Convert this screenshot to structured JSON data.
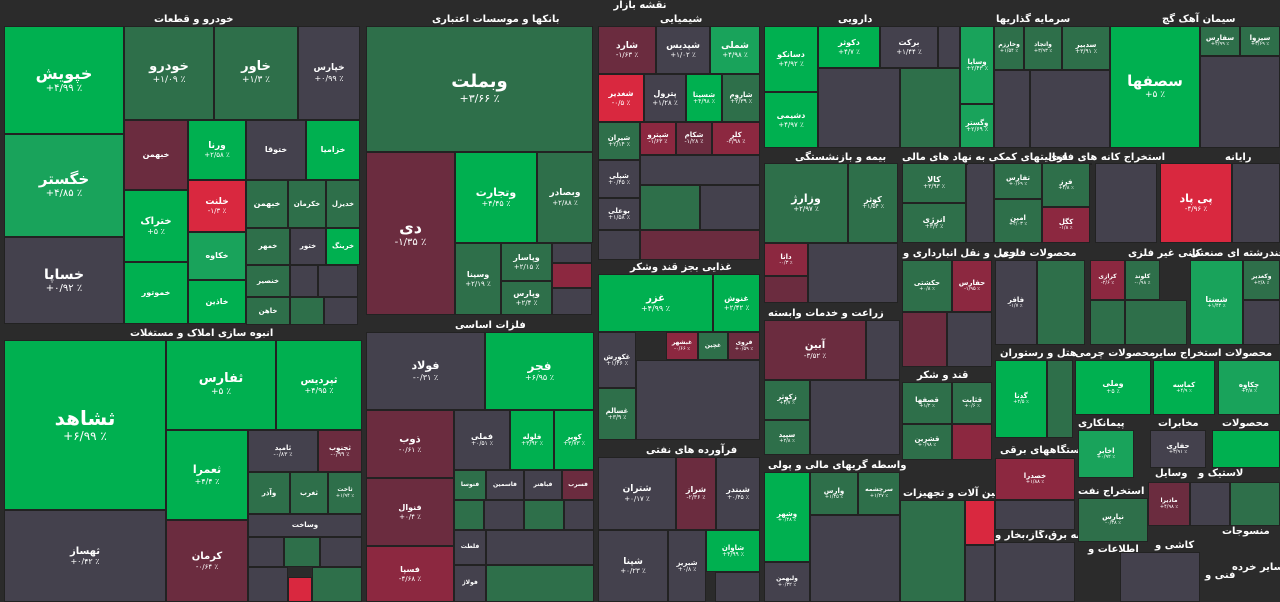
{
  "page_title": "نقشه بازار",
  "groups": {
    "auto": "خودرو و قطعات",
    "banks": "بانکها و موسسات اعتباری",
    "chem": "شیمیایی",
    "pharma": "دارویی",
    "invest": "سرمایه گذاریها",
    "cement": "سیمان آهک گچ",
    "construction": "انبوه سازی املاک و مستغلات",
    "metals": "فلزات اساسی",
    "food": "غذایی بجز قند وشکر",
    "insurance": "بیمه و بازنشستگی",
    "financial": "فعالیتهای کمکی به نهاد های مالی",
    "coal": "استخراج کانه های فلزی",
    "it": "رایانه",
    "agri": "زراعت و خدمات وابسته",
    "transport": "حمل و نقل انبارداری و",
    "metalprod": "محصولات فلزی",
    "nonmetal": "کانی غیر فلزی",
    "multi": "چندرشته ای صنعتی",
    "sugar": "قند و شکر",
    "hotel": "هتل و رستوران",
    "wood": "محصولات چرمی",
    "mining": "استخراج سایر",
    "products": "محصولات",
    "oil": "فرآورده های نفتی",
    "brokers": "واسطه گریهای مالی و پولی",
    "machinery": "ماشین آلات و تجهیزات",
    "electric": "دستگاههای برقی",
    "contract": "پیمانکاری",
    "telecom": "مخابرات",
    "oilex": "استخراج نفت",
    "rubber": "لاستیک و",
    "tools": "وسایل",
    "products2": "محصولات",
    "textile": "منسوجات",
    "other": "سایر خرده",
    "info": "اطلاعات و",
    "paper": "کاشی و",
    "tech": "فنی و",
    "utilities": "عرضه برق،گاز،بخار و"
  },
  "tiles": [
    {
      "n": "خپویش",
      "p": "٪ ۴/۹۹+"
    },
    {
      "n": "خگستر",
      "p": "٪ ۴/۸۵+"
    },
    {
      "n": "خساپا",
      "p": "٪ ۰/۹۲+"
    },
    {
      "n": "خودرو",
      "p": "٪ ۱/۰۹+"
    },
    {
      "n": "خاور",
      "p": "٪ ۱/۳+"
    },
    {
      "n": "خپارس",
      "p": "٪ ۰/۹۹+"
    },
    {
      "n": "ختراک",
      "p": "٪ ۵+"
    },
    {
      "n": "ورنا",
      "p": "٪ ۲/۵۸+"
    },
    {
      "n": "خلنت",
      "p": "٪ ۱/۳-"
    },
    {
      "n": "وبملت",
      "p": "٪ ۳/۶۶+"
    },
    {
      "n": "دی",
      "p": "٪ ۱/۳۵-"
    },
    {
      "n": "وتجارت",
      "p": "٪ ۴/۴۵+"
    },
    {
      "n": "وبصادر",
      "p": "٪ ۲/۸۸+"
    },
    {
      "n": "وسینا",
      "p": "٪ ۲/۱۹+"
    },
    {
      "n": "وپاسار",
      "p": "٪ ۲/۱۵+"
    },
    {
      "n": "وپارس",
      "p": "٪ ۲/۴+"
    },
    {
      "n": "شارد",
      "p": "٪ ۱/۶۳-"
    },
    {
      "n": "شپدیس",
      "p": "٪ ۱/۰۲+"
    },
    {
      "n": "شملی",
      "p": "٪ ۴/۹۸+"
    },
    {
      "n": "شغدیر",
      "p": "٪ ۰/۵-"
    },
    {
      "n": "پترول",
      "p": "٪ ۱/۲۸+"
    },
    {
      "n": "شسینا",
      "p": "٪ ۴/۹۸+"
    },
    {
      "n": "شاروم",
      "p": "٪ ۲/۳۹+"
    },
    {
      "n": "شیران",
      "p": "٪ ۲/۱۴+"
    },
    {
      "n": "شپترو",
      "p": "٪ ۱/۶۳-"
    },
    {
      "n": "شکام",
      "p": "٪ ۱/۲۸-"
    },
    {
      "n": "کلر",
      "p": "٪ ۳/۹۸-"
    },
    {
      "n": "شپلی",
      "p": "٪ ۰/۴۵+"
    },
    {
      "n": "بوعلی",
      "p": "٪ ۱/۵۸+"
    },
    {
      "n": "دسانکو",
      "p": "٪ ۴/۹۲+"
    },
    {
      "n": "دکوثر",
      "p": "٪ ۴/۷+"
    },
    {
      "n": "برکت",
      "p": "٪ ۱/۴۴+"
    },
    {
      "n": "دشیمی",
      "p": "٪ ۴/۹۷+"
    },
    {
      "n": "وسایا",
      "p": "٪ ۲/۴۳+"
    },
    {
      "n": "وخارزم",
      "p": "٪ ۱/۵۴+"
    },
    {
      "n": "واتجاد",
      "p": "٪ ۳/۹۳+"
    },
    {
      "n": "سدبیر",
      "p": "٪ ۳/۹۱+"
    },
    {
      "n": "وگستر",
      "p": "٪ ۲/۶۹+"
    },
    {
      "n": "سفارس",
      "p": "٪ ۲/۹۹+"
    },
    {
      "n": "سیزوا",
      "p": "٪ ۳/۶۹+"
    },
    {
      "n": "سصفها",
      "p": "٪ ۵+"
    },
    {
      "n": "ثشاهد",
      "p": "٪ ۶/۹۹+"
    },
    {
      "n": "ثفارس",
      "p": "٪ ۵+"
    },
    {
      "n": "ثپردیس",
      "p": "٪ ۴/۹۵+"
    },
    {
      "n": "ثعمرا",
      "p": "٪ ۴/۴+"
    },
    {
      "n": "ثامید",
      "p": "٪ ۰/۸۳-"
    },
    {
      "n": "ثجنوب",
      "p": "٪ ۰/۹۹-"
    },
    {
      "n": "ثاخت",
      "p": "٪ ۱/۹۴+"
    },
    {
      "n": "ثهساز",
      "p": "٪ ۰/۴۲+"
    },
    {
      "n": "کرمان",
      "p": "٪ ۰/۶۴-"
    },
    {
      "n": "فولاد",
      "p": "٪ ۰/۳۱-"
    },
    {
      "n": "فجر",
      "p": "٪ ۶/۹۵+"
    },
    {
      "n": "ذوب",
      "p": "٪ ۰/۶۱-"
    },
    {
      "n": "فملی",
      "p": "٪ ۰/۵۱+"
    },
    {
      "n": "فلوله",
      "p": "٪ ۳/۹۲+"
    },
    {
      "n": "کویر",
      "p": "٪ ۳/۷۳+"
    },
    {
      "n": "فنوال",
      "p": "٪ ۰/۴+"
    },
    {
      "n": "فسپا",
      "p": "٪ ۴/۶۸-"
    },
    {
      "n": "غزر",
      "p": "٪ ۴/۹۹+"
    },
    {
      "n": "غنوش",
      "p": "٪ ۲/۴۲+"
    },
    {
      "n": "غکورش",
      "p": "٪ ۱/۴۶+"
    },
    {
      "n": "غسالم",
      "p": "٪ ۳/۹+"
    },
    {
      "n": "شتران",
      "p": "٪ ۰/۱۷+"
    },
    {
      "n": "شراز",
      "p": "٪ ۲/۳۶-"
    },
    {
      "n": "شبندر",
      "p": "٪ ۰/۴۵+"
    },
    {
      "n": "شپنا",
      "p": "٪ ۰/۲۳+"
    },
    {
      "n": "شاوان",
      "p": "٪ ۴/۹۹+"
    },
    {
      "n": "شبریز",
      "p": "٪ ۰/۸+"
    },
    {
      "n": "ولبهمن",
      "p": "٪ ۰/۳۲+"
    },
    {
      "n": "وزارژ",
      "p": "٪ ۲/۹۷+"
    },
    {
      "n": "کوثر",
      "p": "٪ ۱/۵۴+"
    },
    {
      "n": "کالا",
      "p": "٪ ۳/۹۳+"
    },
    {
      "n": "تفارس",
      "p": "٪ ۰/۶۹+"
    },
    {
      "n": "انرژی",
      "p": "٪ ۳/۲+"
    },
    {
      "n": "امین",
      "p": "٪ ۲/۰۳+"
    },
    {
      "n": "فرز",
      "p": "٪ ۴/۸+"
    },
    {
      "n": "اپال",
      "p": "٪ ۱/۹+"
    },
    {
      "n": "کگل",
      "p": "٪ ۱/۸-"
    },
    {
      "n": "پی پاد",
      "p": "٪ ۴/۹۶-"
    },
    {
      "n": "دانا",
      "p": "٪ ۰/۳-"
    },
    {
      "n": "حکشتی",
      "p": "٪ ۰/۸+"
    },
    {
      "n": "حفارس",
      "p": "٪ ۱/۹۵-"
    },
    {
      "n": "فافر",
      "p": "٪ ۱/۷-"
    },
    {
      "n": "کرازی",
      "p": "٪ ۲/۶-"
    },
    {
      "n": "کلوند",
      "p": "٪ ۰/۹۸-"
    },
    {
      "n": "شستا",
      "p": "٪ ۱/۴۴+"
    },
    {
      "n": "وکغدیر",
      "p": "٪ ۲/۸+"
    },
    {
      "n": "آبین",
      "p": "٪ ۳/۵۲-"
    },
    {
      "n": "زکوثر",
      "p": "٪ ۴/۷+"
    },
    {
      "n": "سپید",
      "p": "٪ ۲/۸+"
    },
    {
      "n": "قصفها",
      "p": "٪ ۱/۲+"
    },
    {
      "n": "قثابت",
      "p": "٪ ۰/۶+"
    },
    {
      "n": "قشرین",
      "p": "٪ ۰/۹۸+"
    },
    {
      "n": "گدنا",
      "p": "٪ ۲/۵+"
    },
    {
      "n": "وملی",
      "p": "٪ ۵+"
    },
    {
      "n": "کماسه",
      "p": "٪ ۴/۹+"
    },
    {
      "n": "چکاوه",
      "p": "٪ ۲/۸+"
    },
    {
      "n": "وارس",
      "p": "٪ ۱/۴۵+"
    },
    {
      "n": "سرچشمه",
      "p": "٪ ۱/۲۷+"
    },
    {
      "n": "وشهر",
      "p": "٪ ۰/۴۸+"
    },
    {
      "n": "غگیلا",
      "p": "٪ ۰/۳۹-"
    },
    {
      "n": "غبشهر",
      "p": "٪ ۰/۶۶-"
    },
    {
      "n": "فروی",
      "p": "٪ ۰/۵۹+"
    },
    {
      "n": "بنیرو",
      "p": "٪ ۲/۷+"
    },
    {
      "n": "خصدرا",
      "p": "٪ ۱/۸۸+"
    },
    {
      "n": "اخابر",
      "p": "٪ ۰/۹۲+"
    },
    {
      "n": "حفاری",
      "p": "٪ ۳/۹۱+"
    },
    {
      "n": "نیارس",
      "p": "٪ ۰/۳۸-"
    },
    {
      "n": "مادیرا",
      "p": "٪ ۴/۹۸+"
    }
  ]
}
